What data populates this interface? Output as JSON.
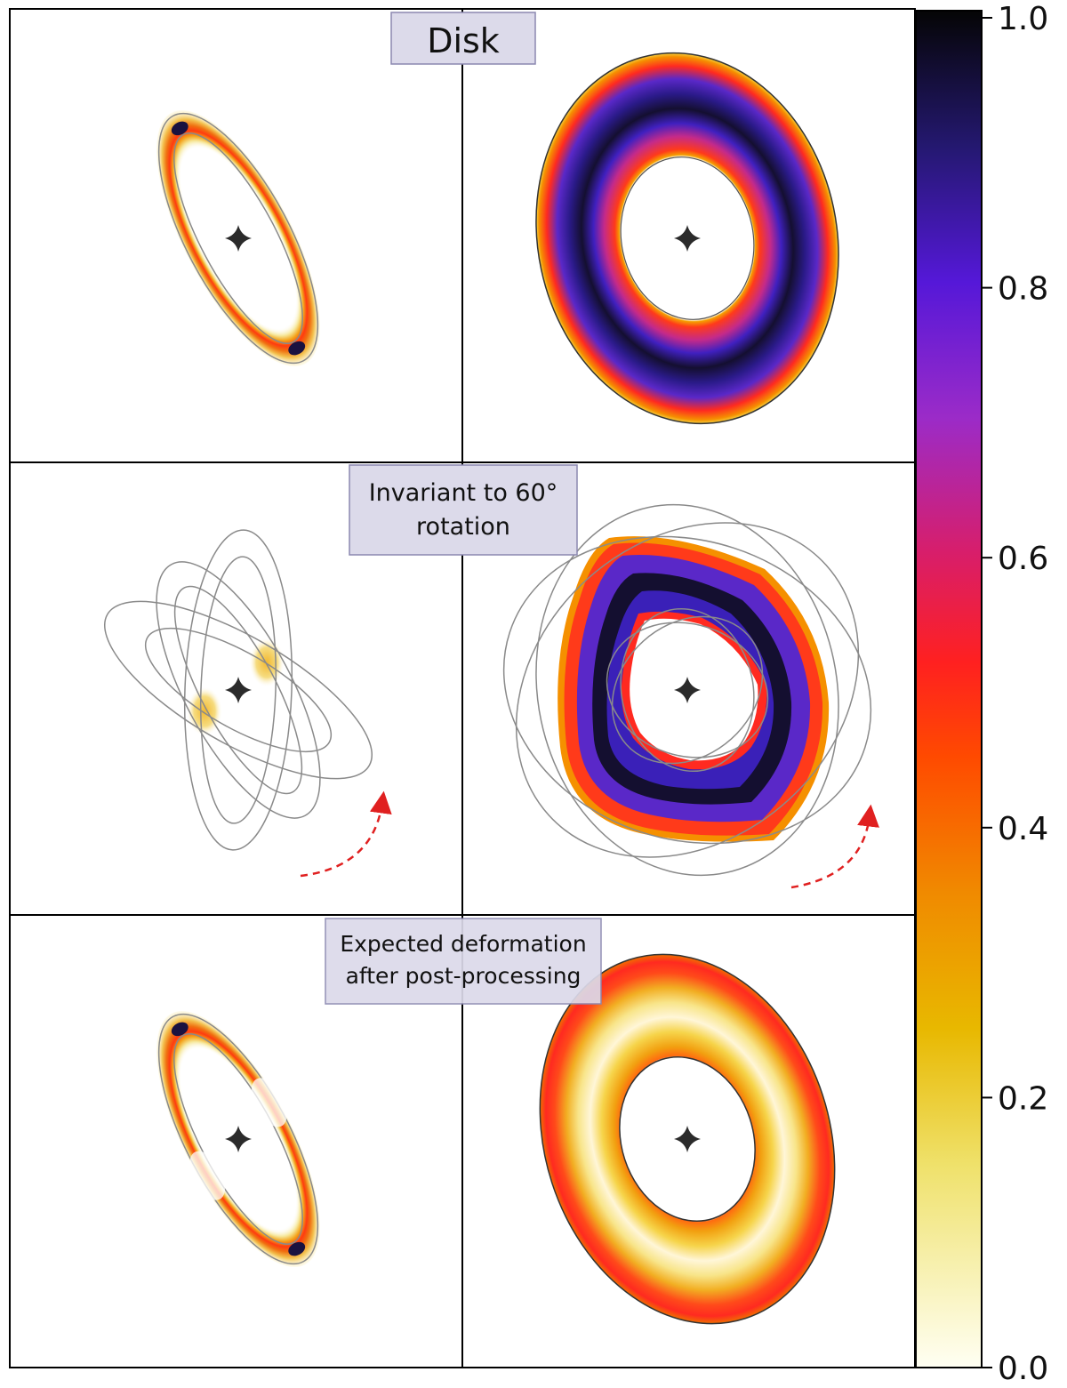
{
  "panel_labels": {
    "row1": "Disk",
    "row2_line1": "Invariant to 60°",
    "row2_line2": "rotation",
    "row3_line1": "Expected deformation",
    "row3_line2": "after post-processing"
  },
  "colorbar": {
    "ticks": [
      "0.0",
      "0.2",
      "0.4",
      "0.6",
      "0.8",
      "1.0"
    ],
    "min": 0.0,
    "max": 1.0,
    "colormap": [
      {
        "v": 0.0,
        "c": "#fffff3"
      },
      {
        "v": 0.15,
        "c": "#efe16a"
      },
      {
        "v": 0.25,
        "c": "#e8b800"
      },
      {
        "v": 0.35,
        "c": "#f08a00"
      },
      {
        "v": 0.45,
        "c": "#ff4a00"
      },
      {
        "v": 0.52,
        "c": "#ff2020"
      },
      {
        "v": 0.6,
        "c": "#d81e6a"
      },
      {
        "v": 0.7,
        "c": "#9b2bc8"
      },
      {
        "v": 0.8,
        "c": "#5518d8"
      },
      {
        "v": 0.9,
        "c": "#241870"
      },
      {
        "v": 1.0,
        "c": "#050505"
      }
    ]
  },
  "colors": {
    "annotation_arrow": "#e02020",
    "label_box_fill": "#dcdaea",
    "label_box_stroke": "#8b88b0",
    "outline": "#8a8a8a",
    "star": "#2b2b2b"
  }
}
